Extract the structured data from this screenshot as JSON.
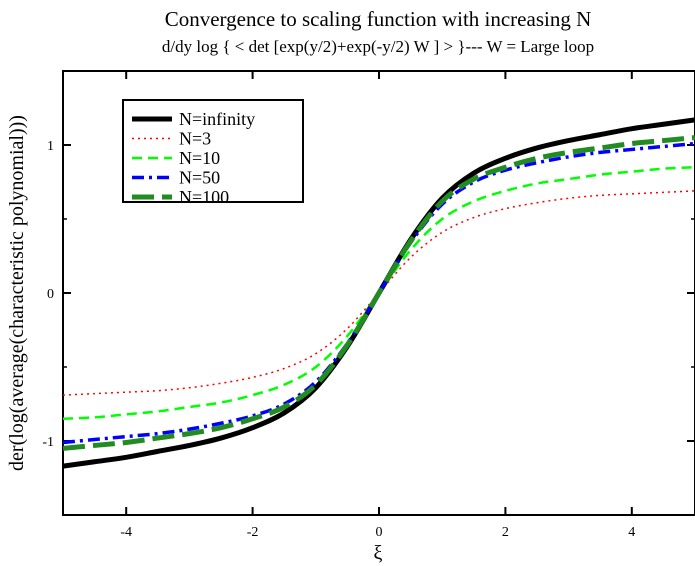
{
  "chart_data": {
    "type": "line",
    "title": "Convergence to scaling function with increasing N",
    "subtitle": "d/dy log { < det [exp(y/2)+exp(-y/2) W ] > }--- W = Large loop",
    "xlabel": "ξ",
    "ylabel": "der(log(average(characteristic polynomial)))",
    "xlim": [
      -5,
      5
    ],
    "ylim": [
      -1.5,
      1.5
    ],
    "x_ticks": [
      -4,
      -2,
      0,
      2,
      4
    ],
    "x_tick_labels": [
      "-4",
      "-2",
      "0",
      "2",
      "4"
    ],
    "y_ticks": [
      -1,
      0,
      1
    ],
    "y_tick_labels": [
      "-1",
      "0",
      "1"
    ],
    "grid": false,
    "legend_position": "top-left",
    "x": [
      -5,
      -4.5,
      -4,
      -3.5,
      -3,
      -2.5,
      -2,
      -1.5,
      -1,
      -0.5,
      0,
      0.5,
      1,
      1.5,
      2,
      2.5,
      3,
      3.5,
      4,
      4.5,
      5
    ],
    "series": [
      {
        "name": "N=infinity",
        "color": "#000000",
        "style": "solid-thick",
        "values": [
          -1.17,
          -1.14,
          -1.11,
          -1.07,
          -1.03,
          -0.98,
          -0.91,
          -0.81,
          -0.64,
          -0.36,
          0.0,
          0.36,
          0.64,
          0.81,
          0.91,
          0.98,
          1.03,
          1.07,
          1.11,
          1.14,
          1.17
        ]
      },
      {
        "name": "N=3",
        "color": "#ff0000",
        "style": "dotted",
        "values": [
          -0.69,
          -0.68,
          -0.67,
          -0.66,
          -0.64,
          -0.61,
          -0.57,
          -0.51,
          -0.41,
          -0.24,
          0.0,
          0.24,
          0.41,
          0.51,
          0.57,
          0.61,
          0.64,
          0.66,
          0.67,
          0.68,
          0.69
        ]
      },
      {
        "name": "N=10",
        "color": "#00ff00",
        "style": "dashed",
        "values": [
          -0.85,
          -0.84,
          -0.82,
          -0.8,
          -0.77,
          -0.74,
          -0.69,
          -0.62,
          -0.5,
          -0.29,
          0.0,
          0.29,
          0.5,
          0.62,
          0.69,
          0.74,
          0.77,
          0.8,
          0.82,
          0.84,
          0.85
        ]
      },
      {
        "name": "N=50",
        "color": "#0000ff",
        "style": "dash-dot",
        "values": [
          -1.01,
          -0.99,
          -0.97,
          -0.95,
          -0.92,
          -0.88,
          -0.83,
          -0.75,
          -0.6,
          -0.34,
          0.0,
          0.34,
          0.6,
          0.75,
          0.83,
          0.88,
          0.92,
          0.95,
          0.97,
          0.99,
          1.01
        ]
      },
      {
        "name": "N=100",
        "color": "#228b22",
        "style": "long-dash-thick",
        "values": [
          -1.05,
          -1.03,
          -1.01,
          -0.98,
          -0.95,
          -0.91,
          -0.85,
          -0.77,
          -0.62,
          -0.35,
          0.0,
          0.35,
          0.62,
          0.77,
          0.85,
          0.91,
          0.95,
          0.98,
          1.01,
          1.03,
          1.05
        ]
      }
    ]
  }
}
